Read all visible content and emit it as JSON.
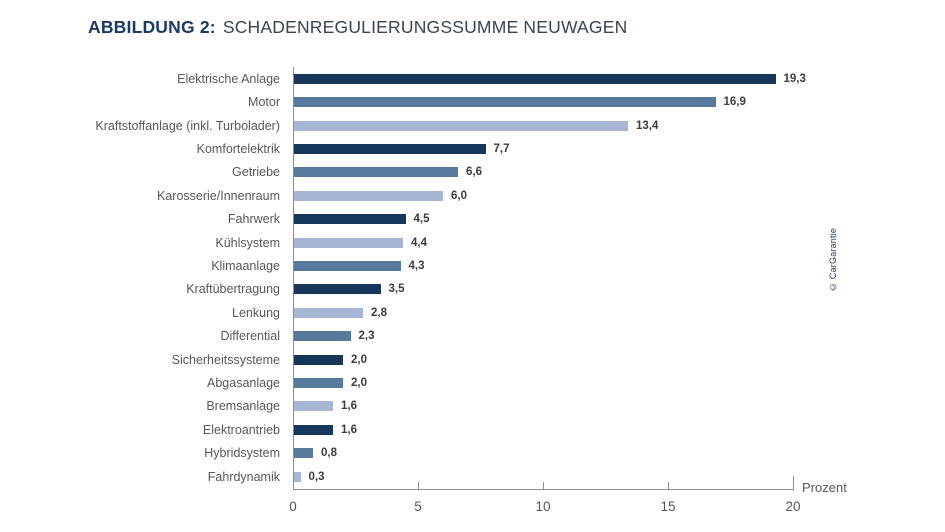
{
  "title": {
    "prefix": "ABBILDUNG 2:",
    "text": "SCHADENREGULIERUNGSSUMME NEUWAGEN"
  },
  "axis": {
    "unit_label": "Prozent",
    "ticks": [
      0,
      5,
      10,
      15,
      20
    ],
    "max": 20
  },
  "copyright": "© CarGarantie",
  "colors": {
    "dark": "#17365c",
    "mid": "#567a9e",
    "light": "#a7b6d4",
    "axis": "#8f8f8f",
    "category_text": "#58585a",
    "value_text": "#3c3c3b",
    "title_prefix": "#1b3a66",
    "title_text": "#3a4450"
  },
  "chart_data": {
    "type": "bar",
    "orientation": "horizontal",
    "title": "ABBILDUNG 2: SCHADENREGULIERUNGSSUMME NEUWAGEN",
    "xlabel": "Prozent",
    "ylabel": "",
    "xlim": [
      0,
      20
    ],
    "x_ticks": [
      0,
      5,
      10,
      15,
      20
    ],
    "grid": false,
    "legend": "none",
    "categories": [
      "Elektrische Anlage",
      "Motor",
      "Kraftstoffanlage (inkl. Turbolader)",
      "Komfortelektrik",
      "Getriebe",
      "Karosserie/Innenraum",
      "Fahrwerk",
      "Kühlsystem",
      "Klimaanlage",
      "Kraftübertragung",
      "Lenkung",
      "Differential",
      "Sicherheitssysteme",
      "Abgasanlage",
      "Bremsanlage",
      "Elektroantrieb",
      "Hybridsystem",
      "Fahrdynamik"
    ],
    "values": [
      19.3,
      16.9,
      13.4,
      7.7,
      6.6,
      6.0,
      4.5,
      4.4,
      4.3,
      3.5,
      2.8,
      2.3,
      2.0,
      2.0,
      1.6,
      1.6,
      0.8,
      0.3
    ],
    "value_labels": [
      "19,3",
      "16,9",
      "13,4",
      "7,7",
      "6,6",
      "6,0",
      "4,5",
      "4,4",
      "4,3",
      "3,5",
      "2,8",
      "2,3",
      "2,0",
      "2,0",
      "1,6",
      "1,6",
      "0,8",
      "0,3"
    ],
    "bar_color_keys": [
      "dark",
      "mid",
      "light",
      "dark",
      "mid",
      "light",
      "dark",
      "light",
      "mid",
      "dark",
      "light",
      "mid",
      "dark",
      "mid",
      "light",
      "dark",
      "mid",
      "light"
    ]
  }
}
